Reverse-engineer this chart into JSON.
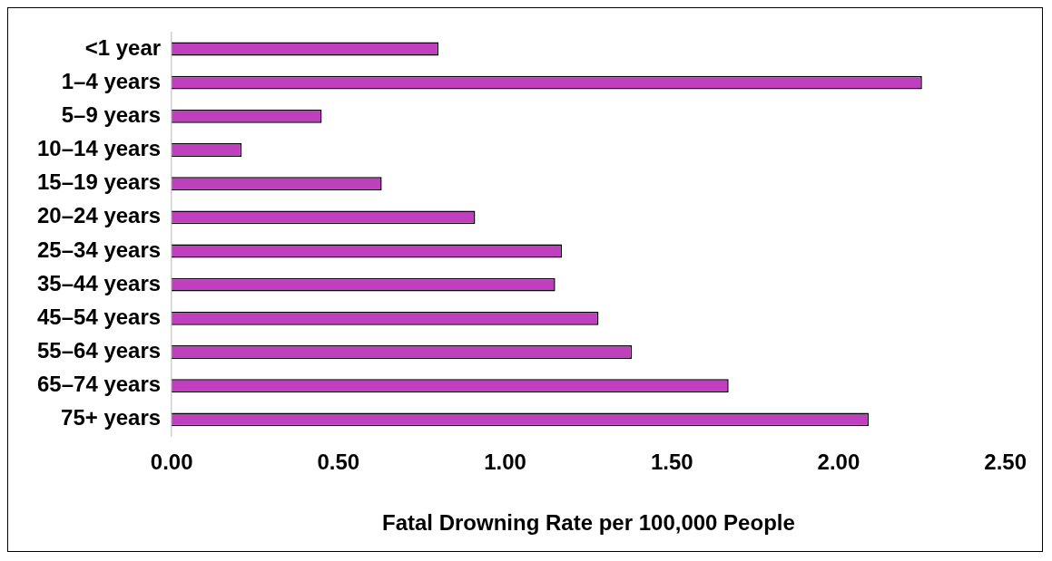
{
  "chart_data": {
    "type": "bar",
    "orientation": "horizontal",
    "xlabel": "Fatal Drowning Rate per 100,000 People",
    "categories": [
      "<1 year",
      "1–4 years",
      "5–9 years",
      "10–14 years",
      "15–19 years",
      "20–24 years",
      "25–34 years",
      "35–44 years",
      "45–54 years",
      "55–64 years",
      "65–74 years",
      "75+ years"
    ],
    "values": [
      0.8,
      2.25,
      0.45,
      0.21,
      0.63,
      0.91,
      1.17,
      1.15,
      1.28,
      1.38,
      1.67,
      2.09
    ],
    "color": "#c03fbf",
    "xlim": [
      0,
      2.5
    ],
    "xticks": [
      {
        "value": 0,
        "label": "0.00"
      },
      {
        "value": 0.5,
        "label": "0.50"
      },
      {
        "value": 1,
        "label": "1.00"
      },
      {
        "value": 1.5,
        "label": "1.50"
      },
      {
        "value": 2,
        "label": "2.00"
      },
      {
        "value": 2.5,
        "label": "2.50"
      }
    ],
    "grid": false,
    "legend": false
  }
}
